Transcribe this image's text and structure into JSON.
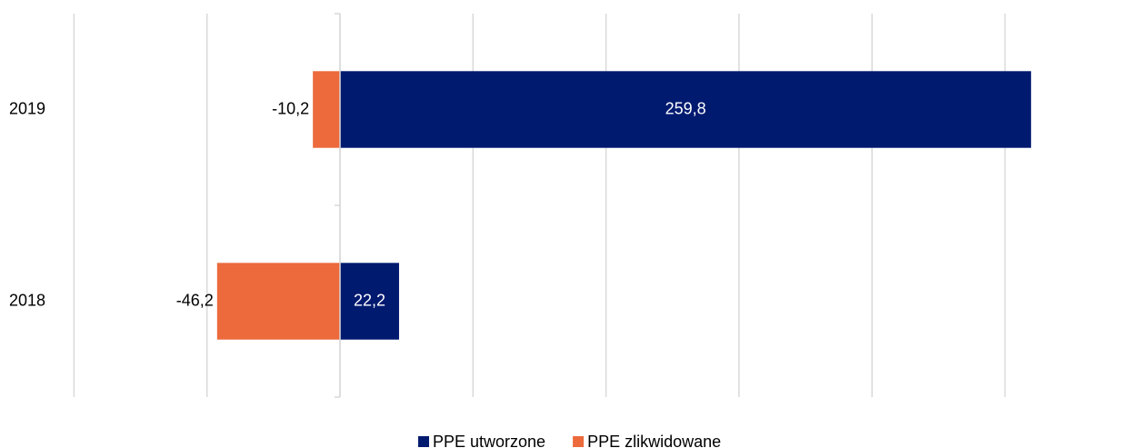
{
  "chart_data": {
    "type": "hbar",
    "stacked": true,
    "categories": [
      "2019",
      "2018"
    ],
    "series": [
      {
        "name": "PPE utworzone",
        "color": "#001a70",
        "values": [
          259.8,
          22.2
        ],
        "value_labels": [
          "259,8",
          "22,2"
        ]
      },
      {
        "name": "PPE zlikwidowane",
        "color": "#ec6a3c",
        "values": [
          -10.2,
          -46.2
        ],
        "value_labels": [
          "-10,2",
          "-46,2"
        ]
      }
    ],
    "xlim": [
      -100,
      250
    ],
    "xticks": [
      -100,
      -50,
      0,
      50,
      100,
      150,
      200,
      250
    ],
    "grid": true,
    "legend": "bottom"
  }
}
